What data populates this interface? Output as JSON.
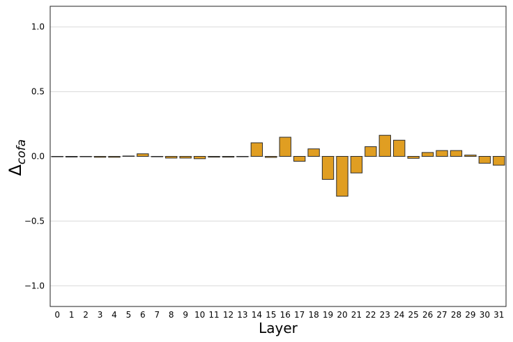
{
  "chart_data": {
    "type": "bar",
    "xlabel": "Layer",
    "ylabel_main": "Δ",
    "ylabel_sub": "cofa",
    "ylim": [
      -1.16,
      1.16
    ],
    "yticks": [
      -1.0,
      -0.5,
      0.0,
      0.5,
      1.0
    ],
    "ytick_labels": [
      "−1.0",
      "−0.5",
      "0.0",
      "0.5",
      "1.0"
    ],
    "grid": "horizontal",
    "bar_color": "#E09E22",
    "bar_edge_color": "#2b2b2b",
    "categories": [
      "0",
      "1",
      "2",
      "3",
      "4",
      "5",
      "6",
      "7",
      "8",
      "9",
      "10",
      "11",
      "12",
      "13",
      "14",
      "15",
      "16",
      "17",
      "18",
      "19",
      "20",
      "21",
      "22",
      "23",
      "24",
      "25",
      "26",
      "27",
      "28",
      "29",
      "30",
      "31"
    ],
    "values": [
      0.0,
      -0.005,
      -0.003,
      -0.007,
      -0.007,
      0.003,
      0.02,
      0.0,
      -0.013,
      -0.013,
      -0.018,
      -0.006,
      -0.006,
      0.0,
      0.105,
      -0.008,
      0.148,
      -0.038,
      0.058,
      -0.178,
      -0.308,
      -0.128,
      0.075,
      0.163,
      0.125,
      -0.015,
      0.03,
      0.045,
      0.045,
      0.01,
      -0.053,
      -0.068
    ]
  }
}
